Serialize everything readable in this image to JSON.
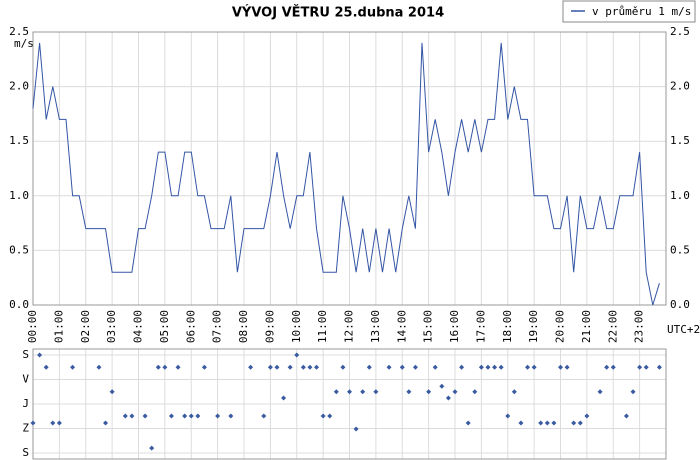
{
  "chart_data": [
    {
      "type": "line",
      "title": "VÝVOJ VĚTRU  25.dubna 2014",
      "y_label": "m/s",
      "x_label": "UTC+2",
      "legend": "top-right",
      "grid": true,
      "x": [
        0,
        0.25,
        0.5,
        0.75,
        1,
        1.25,
        1.5,
        1.75,
        2,
        2.25,
        2.5,
        2.75,
        3,
        3.25,
        3.5,
        3.75,
        4,
        4.25,
        4.5,
        4.75,
        5,
        5.25,
        5.5,
        5.75,
        6,
        6.25,
        6.5,
        6.75,
        7,
        7.25,
        7.5,
        7.75,
        8,
        8.25,
        8.5,
        8.75,
        9,
        9.25,
        9.5,
        9.75,
        10,
        10.25,
        10.5,
        10.75,
        11,
        11.25,
        11.5,
        11.75,
        12,
        12.25,
        12.5,
        12.75,
        13,
        13.25,
        13.5,
        13.75,
        14,
        14.25,
        14.5,
        14.75,
        15,
        15.25,
        15.5,
        15.75,
        16,
        16.25,
        16.5,
        16.75,
        17,
        17.25,
        17.5,
        17.75,
        18,
        18.25,
        18.5,
        18.75,
        19,
        19.25,
        19.5,
        19.75,
        20,
        20.25,
        20.5,
        20.75,
        21,
        21.25,
        21.5,
        21.75,
        22,
        22.25,
        22.5,
        22.75,
        23,
        23.25,
        23.5,
        23.75
      ],
      "series": [
        {
          "name": "v průměru 1 m/s",
          "color": "#3355a5",
          "values": [
            1.8,
            2.4,
            1.7,
            2.0,
            1.7,
            1.7,
            1.0,
            1.0,
            0.7,
            0.7,
            0.7,
            0.7,
            0.3,
            0.3,
            0.3,
            0.3,
            0.7,
            0.7,
            1.0,
            1.4,
            1.4,
            1.0,
            1.0,
            1.4,
            1.4,
            1.0,
            1.0,
            0.7,
            0.7,
            0.7,
            1.0,
            0.3,
            0.7,
            0.7,
            0.7,
            0.7,
            1.0,
            1.4,
            1.0,
            0.7,
            1.0,
            1.0,
            1.4,
            0.7,
            0.3,
            0.3,
            0.3,
            1.0,
            0.7,
            0.3,
            0.7,
            0.3,
            0.7,
            0.3,
            0.7,
            0.3,
            0.7,
            1.0,
            0.7,
            2.4,
            1.4,
            1.7,
            1.4,
            1.0,
            1.4,
            1.7,
            1.4,
            1.7,
            1.4,
            1.7,
            1.7,
            2.4,
            1.7,
            2.0,
            1.7,
            1.7,
            1.0,
            1.0,
            1.0,
            0.7,
            0.7,
            1.0,
            0.3,
            1.0,
            0.7,
            0.7,
            1.0,
            0.7,
            0.7,
            1.0,
            1.0,
            1.0,
            1.4,
            0.3,
            0.0,
            0.2
          ]
        }
      ],
      "xlim": [
        0,
        24
      ],
      "xticks": [
        {
          "value": 0,
          "label": "00:00"
        },
        {
          "value": 1,
          "label": "01:00"
        },
        {
          "value": 2,
          "label": "02:00"
        },
        {
          "value": 3,
          "label": "03:00"
        },
        {
          "value": 4,
          "label": "04:00"
        },
        {
          "value": 5,
          "label": "05:00"
        },
        {
          "value": 6,
          "label": "06:00"
        },
        {
          "value": 7,
          "label": "07:00"
        },
        {
          "value": 8,
          "label": "08:00"
        },
        {
          "value": 9,
          "label": "09:00"
        },
        {
          "value": 10,
          "label": "10:00"
        },
        {
          "value": 11,
          "label": "11:00"
        },
        {
          "value": 12,
          "label": "12:00"
        },
        {
          "value": 13,
          "label": "13:00"
        },
        {
          "value": 14,
          "label": "14:00"
        },
        {
          "value": 15,
          "label": "15:00"
        },
        {
          "value": 16,
          "label": "16:00"
        },
        {
          "value": 17,
          "label": "17:00"
        },
        {
          "value": 18,
          "label": "18:00"
        },
        {
          "value": 19,
          "label": "19:00"
        },
        {
          "value": 20,
          "label": "20:00"
        },
        {
          "value": 21,
          "label": "21:00"
        },
        {
          "value": 22,
          "label": "22:00"
        },
        {
          "value": 23,
          "label": "23:00"
        }
      ],
      "ylim": [
        0,
        2.5
      ],
      "yticks": [
        {
          "value": 0,
          "label": "0.0"
        },
        0.5,
        {
          "value": 1,
          "label": "1.0"
        },
        1.5,
        {
          "value": 2,
          "label": "2.0"
        },
        2.5
      ]
    },
    {
      "type": "scatter",
      "color": "#3a5ba0",
      "grid": true,
      "x": [
        0,
        0.25,
        0.5,
        0.75,
        1,
        1.5,
        2.5,
        2.75,
        3,
        3.5,
        3.75,
        4.25,
        4.5,
        4.75,
        5,
        5.25,
        5.5,
        5.75,
        6,
        6.25,
        6.5,
        7,
        7.5,
        8.25,
        8.75,
        9,
        9.25,
        9.5,
        9.75,
        10,
        10.25,
        10.5,
        10.75,
        11,
        11.25,
        11.5,
        11.75,
        12,
        12.25,
        12.5,
        12.75,
        13,
        13.5,
        14,
        14.25,
        14.5,
        15,
        15.25,
        15.5,
        15.75,
        16,
        16.25,
        16.5,
        16.75,
        17,
        17.25,
        17.5,
        17.75,
        18,
        18.25,
        18.5,
        18.75,
        19,
        19.25,
        19.5,
        19.75,
        20,
        20.25,
        20.5,
        20.75,
        21,
        21.5,
        21.75,
        22,
        22.5,
        22.75,
        23,
        23.25,
        23.75
      ],
      "values": [
        250,
        0,
        45,
        250,
        250,
        45,
        45,
        250,
        135,
        224,
        224,
        224,
        342,
        45,
        45,
        224,
        45,
        224,
        224,
        224,
        45,
        224,
        224,
        45,
        224,
        45,
        45,
        158,
        45,
        0,
        45,
        45,
        45,
        224,
        224,
        135,
        45,
        135,
        272,
        135,
        45,
        135,
        45,
        45,
        135,
        45,
        135,
        45,
        115,
        158,
        135,
        45,
        250,
        135,
        45,
        45,
        45,
        45,
        224,
        135,
        250,
        45,
        45,
        250,
        250,
        250,
        45,
        45,
        250,
        250,
        224,
        135,
        45,
        45,
        224,
        135,
        45,
        45,
        45
      ],
      "xlim": [
        0,
        24
      ],
      "xticks": [
        0,
        1,
        2,
        3,
        4,
        5,
        6,
        7,
        8,
        9,
        10,
        11,
        12,
        13,
        14,
        15,
        16,
        17,
        18,
        19,
        20,
        21,
        22,
        23
      ],
      "ylim": [
        360,
        0
      ],
      "yticks": [
        {
          "value": 0,
          "label": "S"
        },
        {
          "value": 90,
          "label": "V"
        },
        {
          "value": 180,
          "label": "J"
        },
        {
          "value": 270,
          "label": "Z"
        },
        {
          "value": 360,
          "label": "S"
        }
      ]
    }
  ]
}
